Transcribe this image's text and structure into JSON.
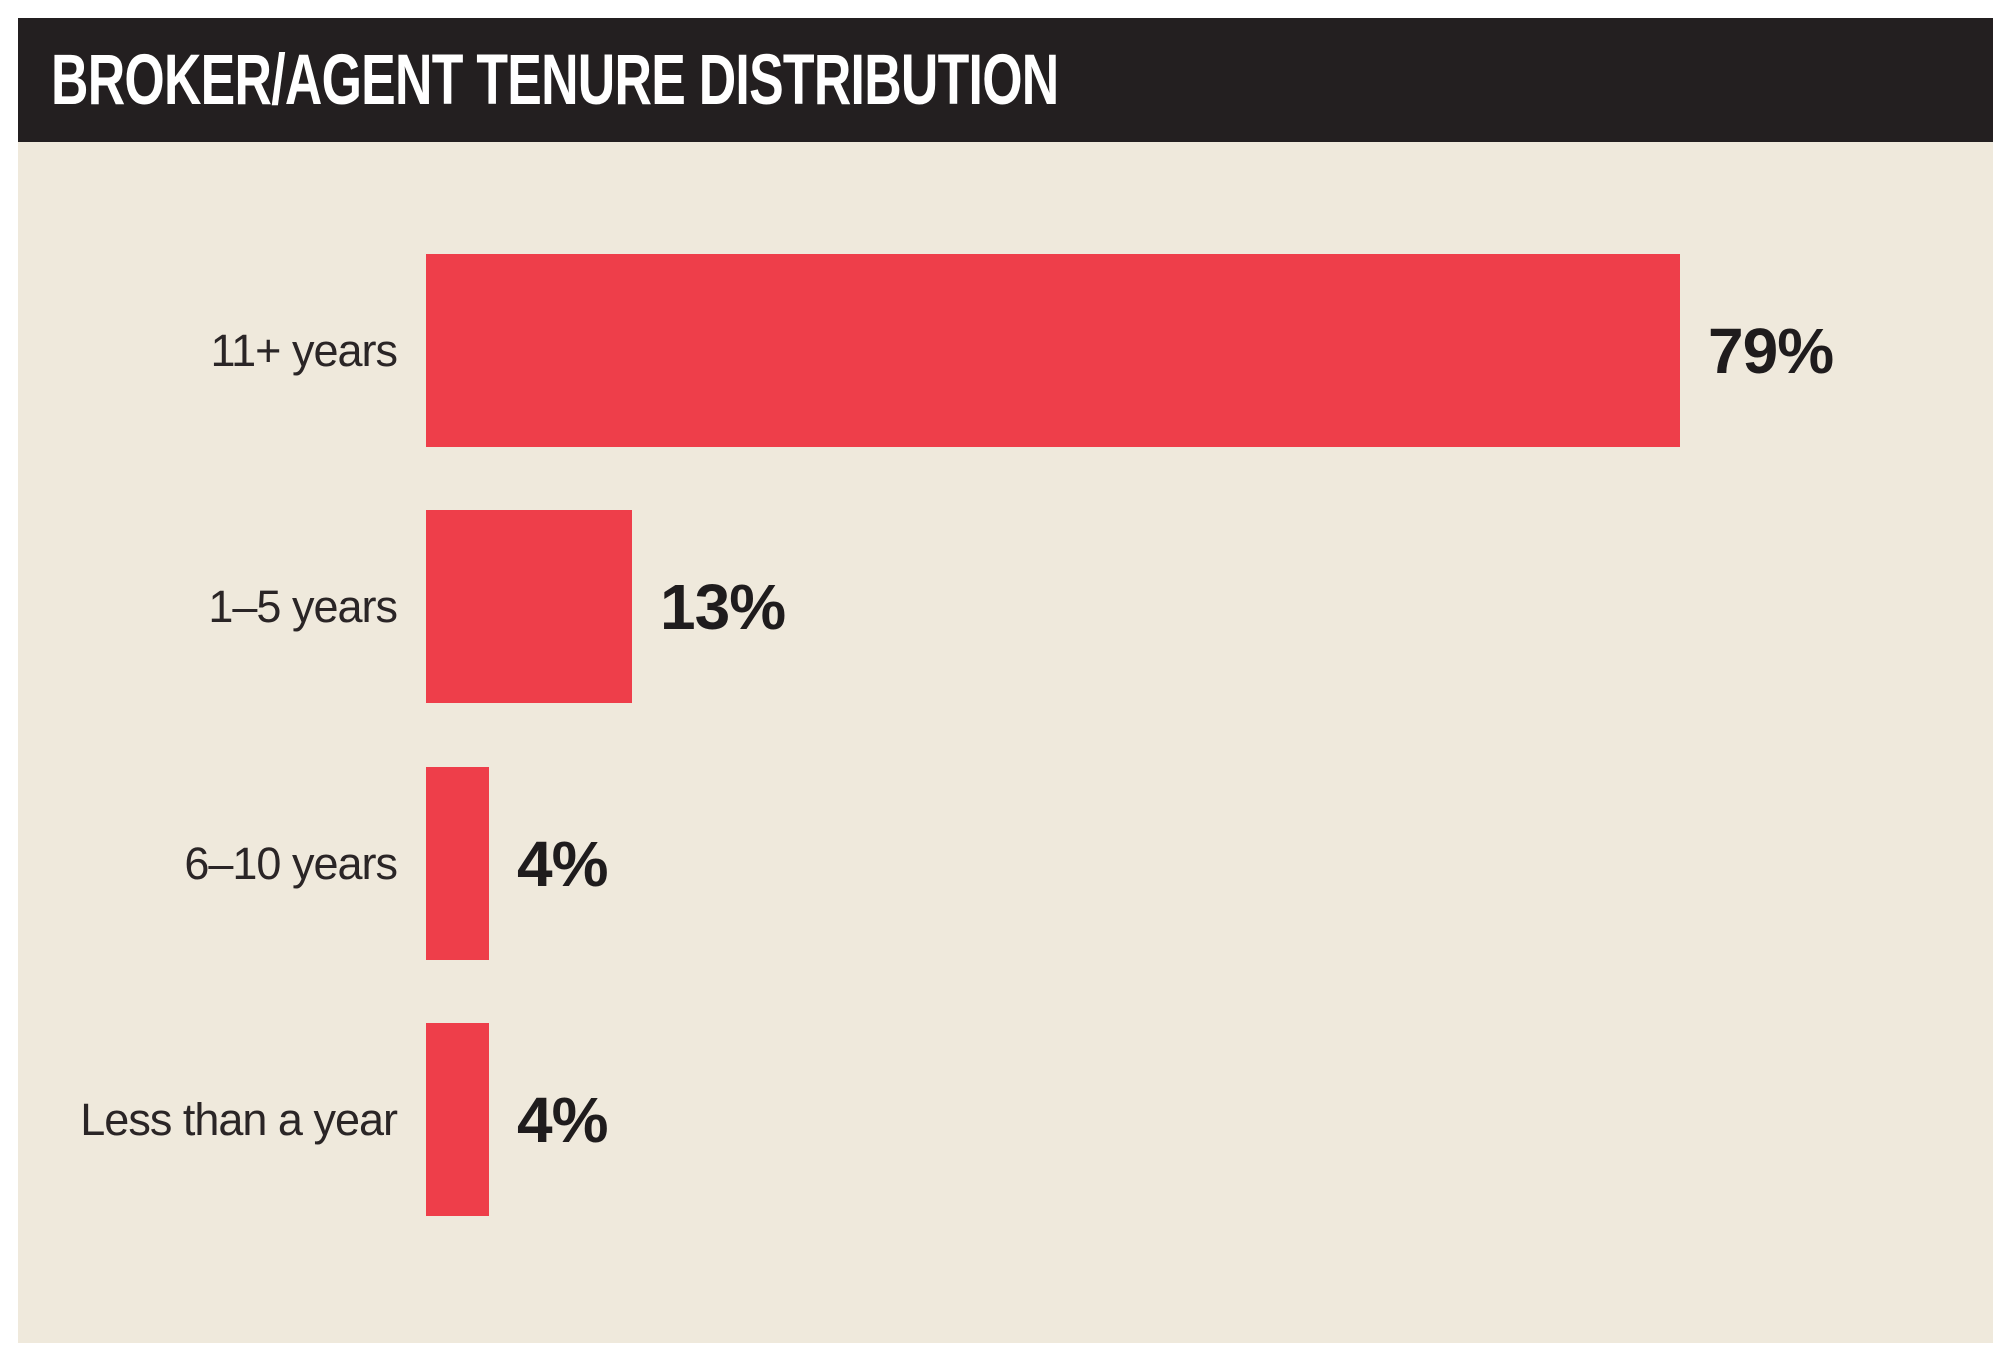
{
  "header": {
    "title": "BROKER/AGENT TENURE DISTRIBUTION"
  },
  "chart_data": {
    "type": "bar",
    "orientation": "horizontal",
    "title": "BROKER/AGENT TENURE DISTRIBUTION",
    "categories": [
      "11+ years",
      "1–5 years",
      "6–10 years",
      "Less than a year"
    ],
    "values": [
      79,
      13,
      4,
      4
    ],
    "value_labels": [
      "79%",
      "13%",
      "4%",
      "4%"
    ],
    "xlabel": "",
    "ylabel": "",
    "xlim": [
      0,
      100
    ],
    "grid": false,
    "legend": "none",
    "value_label_position": "right-of-bar",
    "category_label_position": "left-of-bar",
    "colors": {
      "bar": "#ee3e4a",
      "panel_background": "#efe9dc",
      "header_background": "#231f20",
      "header_text": "#ffffff",
      "category_text": "#2a2526",
      "value_text": "#1f1c1d",
      "page_background": "#ffffff"
    }
  }
}
